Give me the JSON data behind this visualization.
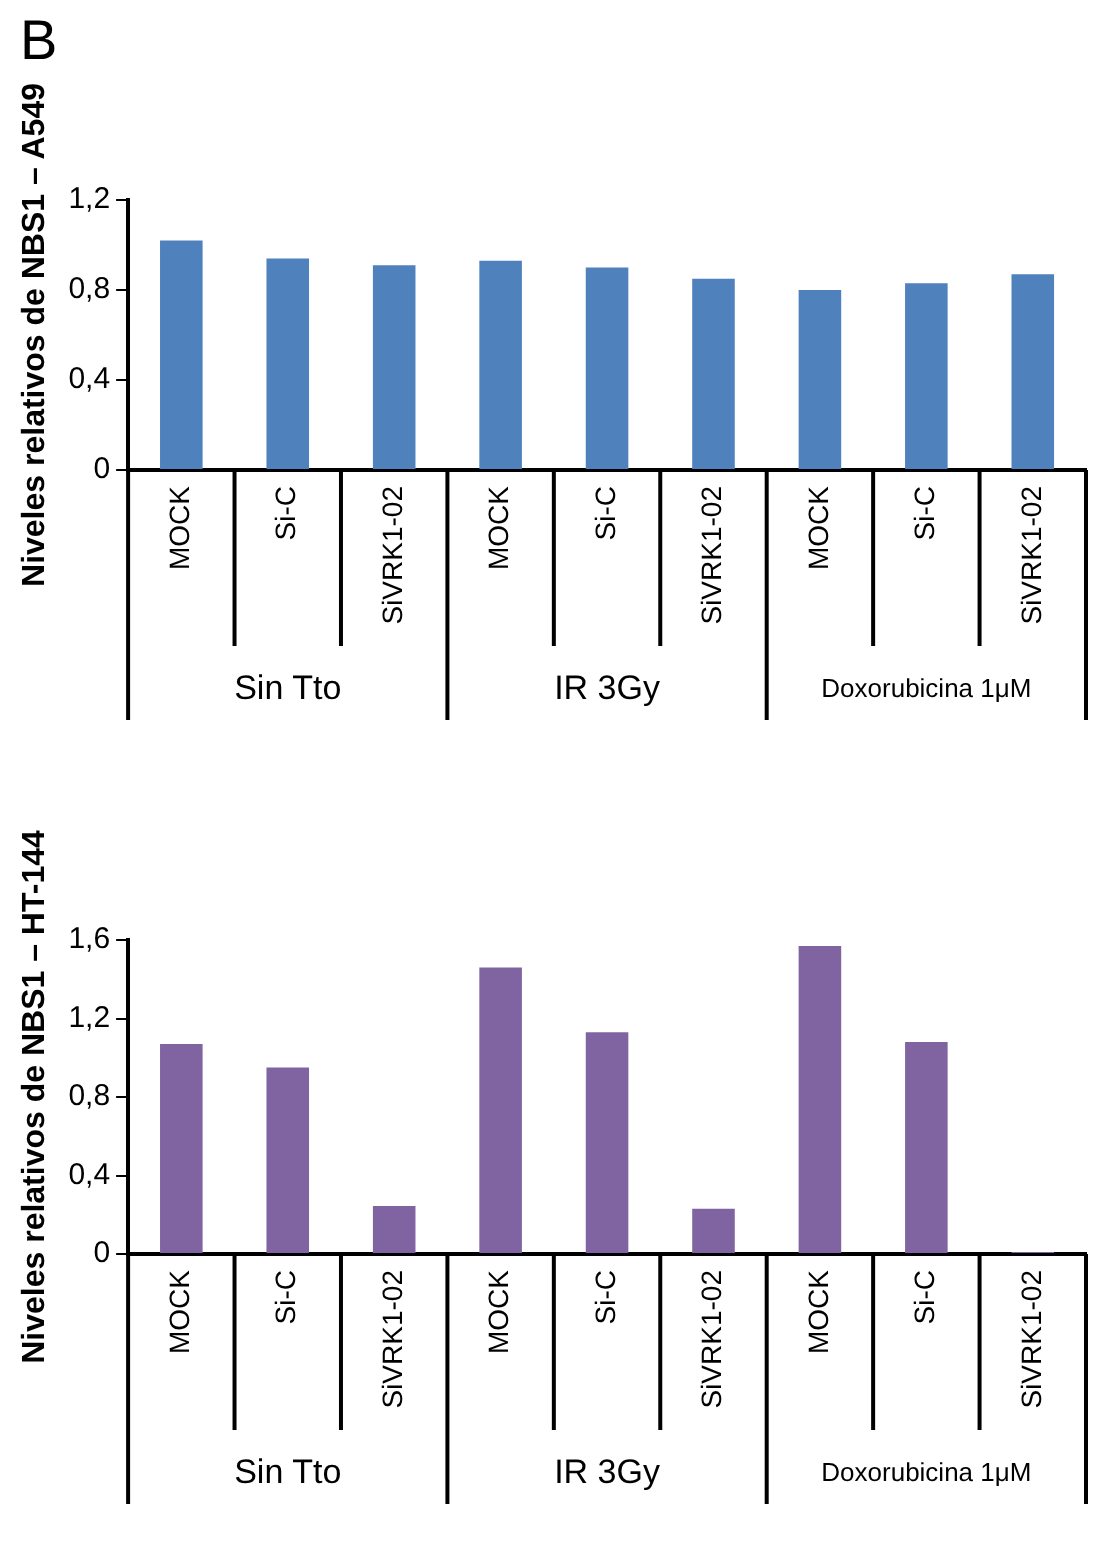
{
  "chart_data": [
    {
      "type": "bar",
      "title": "B",
      "ylabel": "Niveles relativos de NBS1 – A549",
      "categories": [
        "MOCK",
        "Si-C",
        "SiVRK1-02",
        "MOCK",
        "Si-C",
        "SiVRK1-02",
        "MOCK",
        "Si-C",
        "SiVRK1-02"
      ],
      "values": [
        1.02,
        0.94,
        0.91,
        0.93,
        0.9,
        0.85,
        0.8,
        0.83,
        0.87
      ],
      "color": "#4f81bd",
      "ylim": [
        0,
        1.2
      ],
      "yticks": [
        0,
        {
          "value": 0.4,
          "label": "0,4"
        },
        {
          "value": 0.8,
          "label": "0,8"
        },
        {
          "value": 1.2,
          "label": "1,2"
        }
      ],
      "grid": false,
      "legend": false,
      "annotations": [
        "Sin Tto",
        "IR 3Gy",
        "Doxorubicina 1μM"
      ]
    },
    {
      "type": "bar",
      "ylabel": "Niveles relativos de NBS1 – HT-144",
      "categories": [
        "MOCK",
        "Si-C",
        "SiVRK1-02",
        "MOCK",
        "Si-C",
        "SiVRK1-02",
        "MOCK",
        "Si-C",
        "SiVRK1-02"
      ],
      "values": [
        1.07,
        0.95,
        0.245,
        1.46,
        1.13,
        0.23,
        1.57,
        1.08,
        0.01
      ],
      "color": "#8064a2",
      "ylim": [
        0,
        1.6
      ],
      "yticks": [
        0,
        {
          "value": 0.4,
          "label": "0,4"
        },
        {
          "value": 0.8,
          "label": "0,8"
        },
        {
          "value": 1.2,
          "label": "1,2"
        },
        {
          "value": 1.6,
          "label": "1,6"
        }
      ],
      "grid": false,
      "legend": false,
      "annotations": [
        "Sin Tto",
        "IR 3Gy",
        "Doxorubicina 1μM"
      ]
    }
  ]
}
